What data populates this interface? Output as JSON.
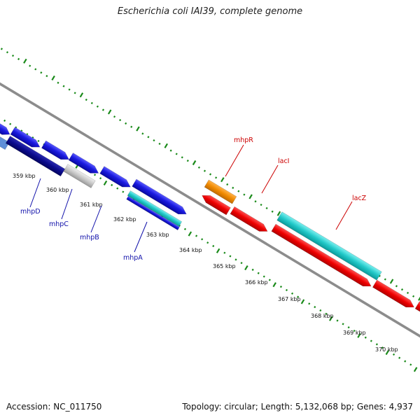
{
  "title": "Escherichia coli IAI39, complete genome",
  "footer": {
    "accession": "Accession: NC_011750",
    "info": "Topology: circular; Length: 5,132,068 bp; Genes: 4,937"
  },
  "kbp_labels": [
    "359 kbp",
    "360 kbp",
    "361 kbp",
    "362 kbp",
    "363 kbp",
    "364 kbp",
    "365 kbp",
    "366 kbp",
    "367 kbp",
    "368 kbp",
    "369 kbp",
    "370 kbp"
  ],
  "gene_labels": {
    "mhpD": "mhpD",
    "mhpC": "mhpC",
    "mhpB": "mhpB",
    "mhpA": "mhpA",
    "mhpR": "mhpR",
    "lacI": "lacI",
    "lacZ": "lacZ"
  },
  "colors": {
    "blue_gene": "#1a1adf",
    "navy_gene": "#0a0a8c",
    "gray_gene": "#c8c8c8",
    "cyan_gene": "#22c8c8",
    "orange_gene": "#f08a00",
    "red_gene": "#ee0000",
    "backbone": "#8c8c8c",
    "ticks": "#1a8a1a",
    "left_label": "#1010aa",
    "right_label": "#cc0000"
  }
}
